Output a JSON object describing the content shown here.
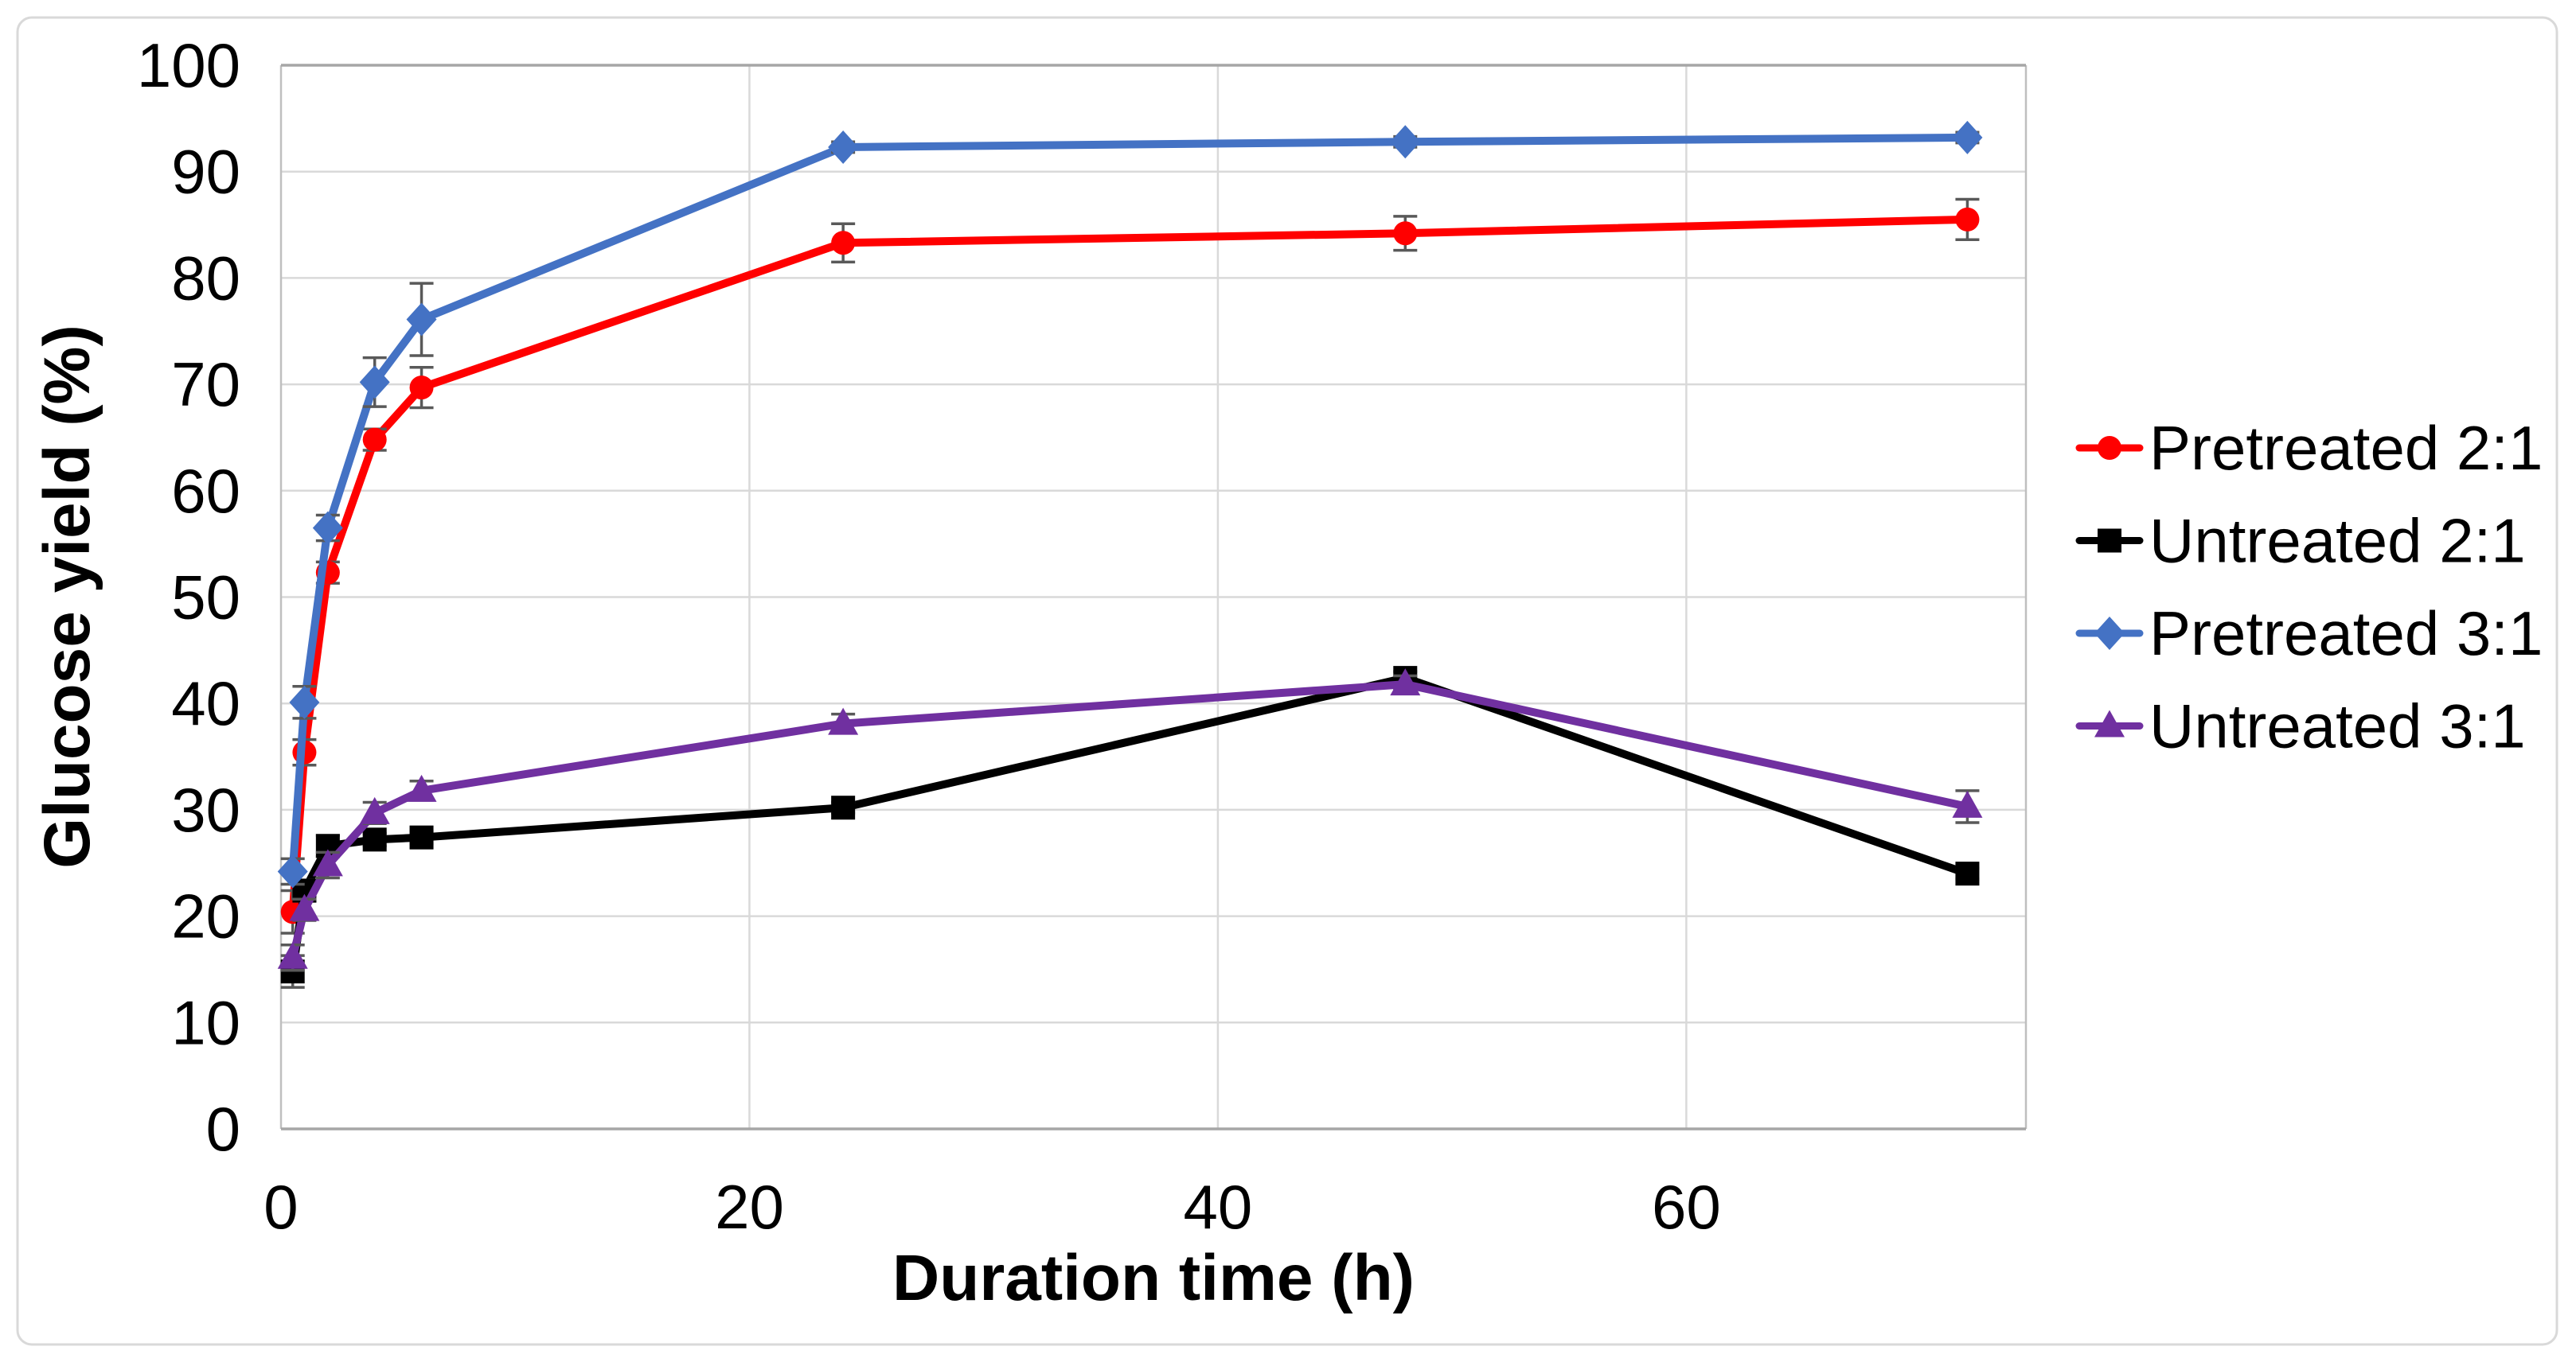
{
  "figure": {
    "background": "#FFFFFF",
    "outer_border_color": "#D9D9D9",
    "plot_border_dark": "#A6A6A6",
    "plot_border_light": "#BFBFBF",
    "gridline_color": "#D9D9D9",
    "error_bar_color": "#595959"
  },
  "chart_data": {
    "type": "line",
    "title": "",
    "xlabel": "Duration time (h)",
    "ylabel": "Glucose yield (%)",
    "x": [
      0.5,
      1,
      2,
      4,
      6,
      24,
      48,
      72
    ],
    "xlim": [
      0,
      74.5
    ],
    "ylim": [
      0,
      100
    ],
    "x_ticks": [
      0,
      20,
      40,
      60
    ],
    "y_ticks": [
      0,
      10,
      20,
      30,
      40,
      50,
      60,
      70,
      80,
      90,
      100
    ],
    "grid": true,
    "legend_position": "right",
    "series": [
      {
        "name": "Pretreated 2:1",
        "color": "#FF0000",
        "marker": "circle",
        "values": [
          20.4,
          35.4,
          52.3,
          64.8,
          69.7,
          83.3,
          84.2,
          85.5
        ],
        "errors": [
          2.0,
          1.2,
          1.0,
          1.0,
          1.9,
          1.8,
          1.6,
          1.9
        ]
      },
      {
        "name": "Untreated 2:1",
        "color": "#000000",
        "marker": "square",
        "values": [
          14.8,
          22.4,
          26.6,
          27.2,
          27.4,
          30.2,
          42.4,
          24.0
        ],
        "errors": [
          1.5,
          1.0,
          1.0,
          0.6,
          0.6,
          0.5,
          0.6,
          0.5
        ]
      },
      {
        "name": "Pretreated 3:1",
        "color": "#4472C4",
        "marker": "diamond",
        "values": [
          24.2,
          40.1,
          56.5,
          70.2,
          76.1,
          92.3,
          92.8,
          93.2
        ],
        "errors": [
          1.2,
          1.5,
          1.2,
          2.3,
          3.4,
          0.5,
          0.5,
          0.5
        ]
      },
      {
        "name": "Untreated 3:1",
        "color": "#7030A0",
        "marker": "triangle",
        "values": [
          16.1,
          20.6,
          24.8,
          29.7,
          31.8,
          38.1,
          41.8,
          30.3
        ],
        "errors": [
          1.2,
          1.0,
          1.2,
          1.0,
          0.9,
          0.9,
          0.8,
          1.5
        ]
      }
    ]
  }
}
